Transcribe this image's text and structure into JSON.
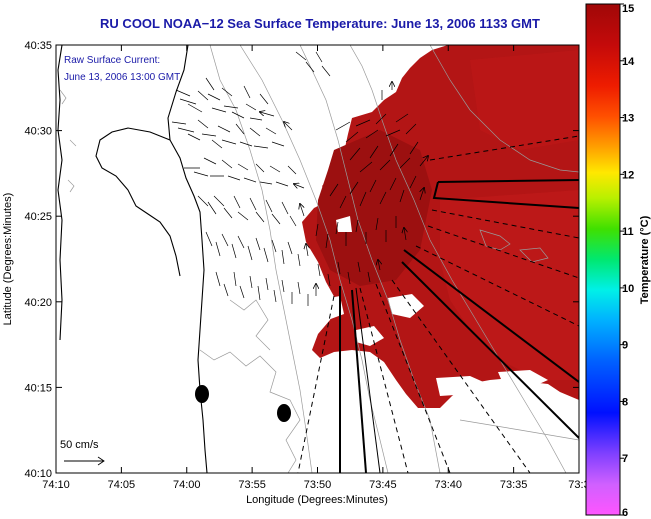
{
  "title": "RU COOL  NOAA−12  Sea Surface Temperature:  June 13, 2006 1133 GMT",
  "overlay": {
    "current_label": "Raw Surface Current:",
    "current_time": "June 13, 2006 13:00 GMT",
    "scale_label": "50 cm/s"
  },
  "x_axis": {
    "label": "Longitude (Degrees:Minutes)",
    "ticks": [
      "74:10",
      "74:05",
      "74:00",
      "73:55",
      "73:50",
      "73:45",
      "73:40",
      "73:35",
      "73:3"
    ]
  },
  "y_axis": {
    "label": "Latitude (Degrees:Minutes)",
    "ticks": [
      "40:35",
      "40:30",
      "40:25",
      "40:20",
      "40:15",
      "40:10"
    ]
  },
  "colorbar": {
    "label": "Temperature (°C)",
    "ticks": [
      "15",
      "14",
      "13",
      "12",
      "11",
      "10",
      "9",
      "8",
      "7",
      "6"
    ]
  },
  "colors": {
    "title": "#1a1aa8",
    "sst_warm": "#b01414",
    "sst_dark": "#8a0c0c"
  }
}
